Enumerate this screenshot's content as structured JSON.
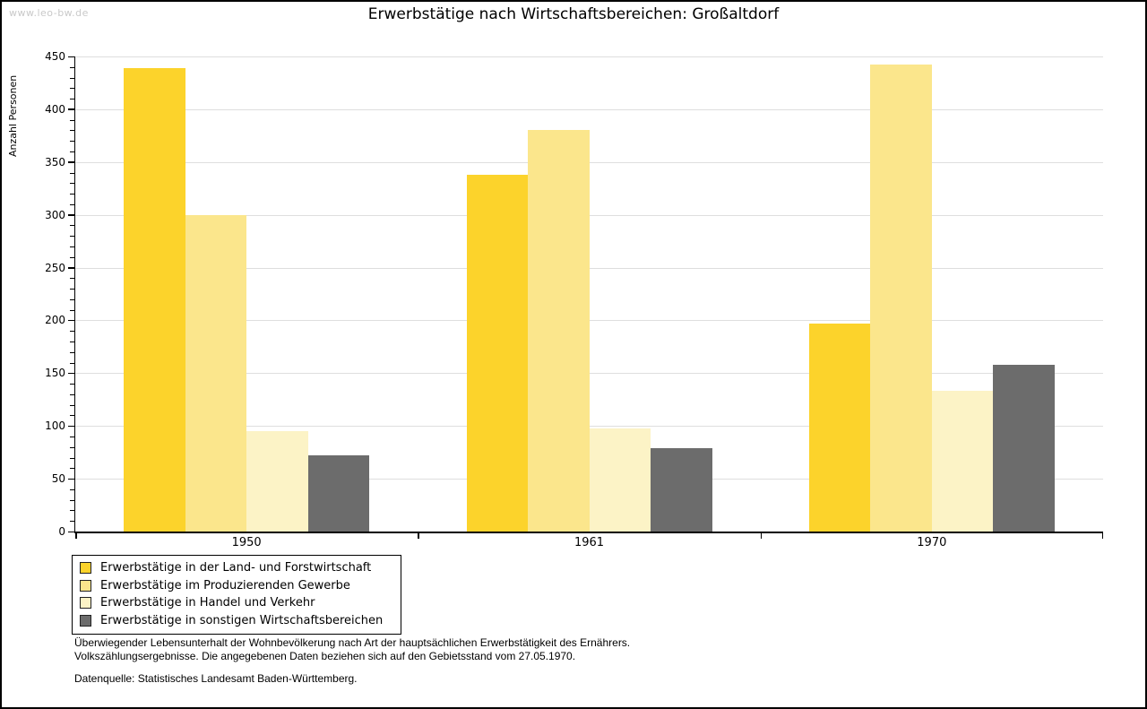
{
  "watermark": "www.leo-bw.de",
  "title": "Erwerbstätige nach Wirtschaftsbereichen: Großaltdorf",
  "chart_data": {
    "type": "bar",
    "title": "Erwerbstätige nach Wirtschaftsbereichen: Großaltdorf",
    "xlabel": "",
    "ylabel": "Anzahl Personen",
    "categories": [
      "1950",
      "1961",
      "1970"
    ],
    "series": [
      {
        "name": "Erwerbstätige in der Land- und Forstwirtschaft",
        "color": "#FCD32B",
        "values": [
          439,
          338,
          197
        ]
      },
      {
        "name": "Erwerbstätige im Produzierenden Gewerbe",
        "color": "#FBE68C",
        "values": [
          300,
          380,
          442
        ]
      },
      {
        "name": "Erwerbstätige in Handel und Verkehr",
        "color": "#FCF3C6",
        "values": [
          95,
          98,
          133
        ]
      },
      {
        "name": "Erwerbstätige in sonstigen Wirtschaftsbereichen",
        "color": "#6C6C6C",
        "values": [
          72,
          79,
          158
        ]
      }
    ],
    "ylim": [
      0,
      450
    ],
    "ytick_step": 50,
    "yminor_step": 10,
    "grid": "horizontal-major-on",
    "legend_position": "bottom-left",
    "gridline_color": "#DEDEDE"
  },
  "notes": {
    "line1": "Überwiegender Lebensunterhalt der Wohnbevölkerung nach Art der hauptsächlichen Erwerbstätigkeit des Ernährers.",
    "line2": "Volkszählungsergebnisse. Die angegebenen Daten beziehen sich auf den Gebietsstand vom 27.05.1970.",
    "source": "Datenquelle: Statistisches Landesamt Baden-Württemberg."
  }
}
